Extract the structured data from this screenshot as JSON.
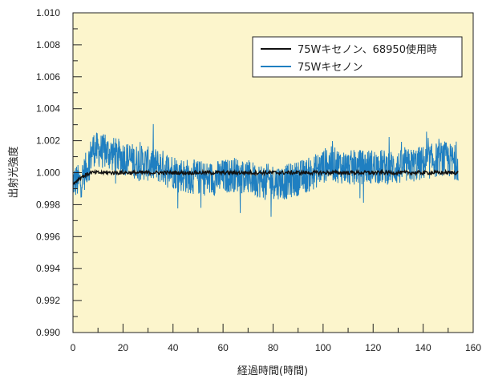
{
  "chart_data": {
    "type": "line",
    "title": "",
    "xlabel": "経過時間(時間)",
    "ylabel": "出射光強度",
    "xlim": [
      0,
      160
    ],
    "ylim": [
      0.99,
      1.01
    ],
    "x_ticks": [
      0,
      20,
      40,
      60,
      80,
      100,
      120,
      140,
      160
    ],
    "x_tick_labels": [
      "0",
      "20",
      "40",
      "60",
      "80",
      "100",
      "120",
      "140",
      "160"
    ],
    "y_ticks": [
      0.99,
      0.992,
      0.994,
      0.996,
      0.998,
      1.0,
      1.002,
      1.004,
      1.006,
      1.008,
      1.01
    ],
    "y_tick_labels": [
      "0.990",
      "0.992",
      "0.994",
      "0.996",
      "0.998",
      "1.000",
      "1.002",
      "1.004",
      "1.006",
      "1.008",
      "1.010"
    ],
    "grid": false,
    "legend_position": "top-right",
    "background_color": "#fcf5cc",
    "series": [
      {
        "name": "75Wキセノン、68950使用時",
        "color": "#111111",
        "x_range": [
          0,
          154
        ],
        "baseline": 1.0,
        "noise_amplitude": 0.00012,
        "anchors": [
          [
            0,
            0.9993
          ],
          [
            3,
            0.9997
          ],
          [
            7,
            1.0
          ],
          [
            154,
            1.0
          ]
        ]
      },
      {
        "name": "75Wキセノン",
        "color": "#1f7fc1",
        "x_range": [
          0,
          154
        ],
        "noise_amplitude": 0.0011,
        "min": 0.9961,
        "max": 1.0035,
        "anchors": [
          [
            0,
            0.9995
          ],
          [
            3,
            0.9994
          ],
          [
            6,
            1.0005
          ],
          [
            8,
            1.0015
          ],
          [
            15,
            1.0012
          ],
          [
            25,
            1.0007
          ],
          [
            35,
            1.0004
          ],
          [
            45,
            0.9998
          ],
          [
            55,
            0.9996
          ],
          [
            65,
            0.9999
          ],
          [
            75,
            0.9995
          ],
          [
            85,
            0.9994
          ],
          [
            95,
            0.9999
          ],
          [
            102,
            1.0006
          ],
          [
            110,
            1.0003
          ],
          [
            120,
            1.0004
          ],
          [
            130,
            1.0003
          ],
          [
            140,
            1.0006
          ],
          [
            148,
            1.0009
          ],
          [
            154,
            1.0006
          ]
        ]
      }
    ]
  }
}
